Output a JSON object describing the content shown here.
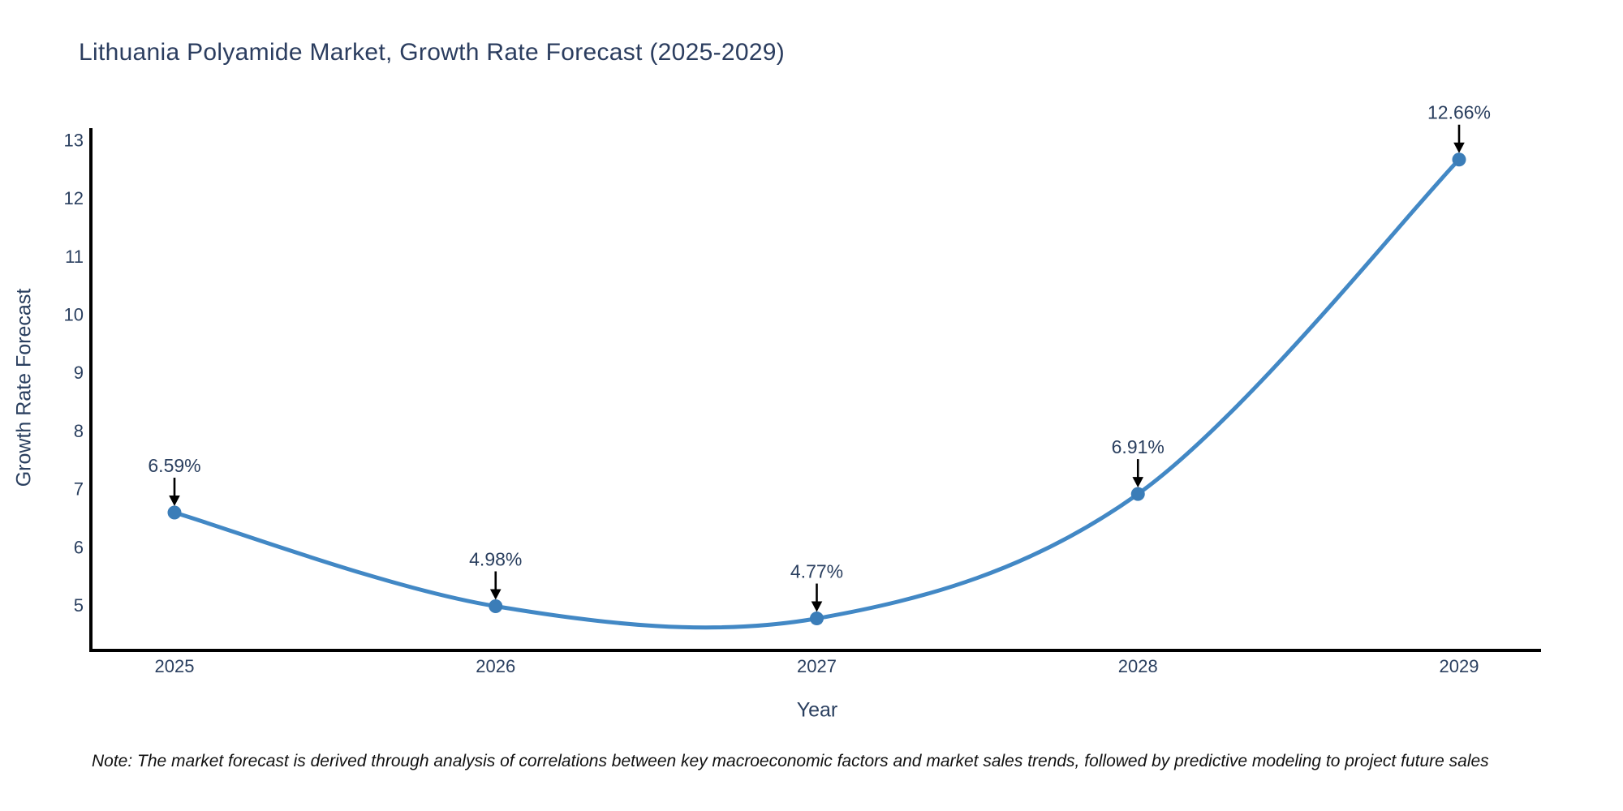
{
  "title": "Lithuania Polyamide Market, Growth Rate Forecast (2025-2029)",
  "note": "Note: The market forecast is derived through analysis of correlations between key macroeconomic factors and market sales trends, followed by predictive modeling to project future sales",
  "chart_data": {
    "type": "line",
    "line_shape": "spline",
    "title": "Lithuania Polyamide Market, Growth Rate Forecast (2025-2029)",
    "xlabel": "Year",
    "ylabel": "Growth Rate Forecast",
    "x": [
      2025,
      2026,
      2027,
      2028,
      2029
    ],
    "y": [
      6.59,
      4.98,
      4.77,
      6.91,
      12.66
    ],
    "point_labels": [
      "6.59%",
      "4.98%",
      "4.77%",
      "6.91%",
      "12.66%"
    ],
    "xticks": [
      "2025",
      "2026",
      "2027",
      "2028",
      "2029"
    ],
    "yticks": [
      5,
      6,
      7,
      8,
      9,
      10,
      11,
      12,
      13
    ],
    "ylim": [
      4.22,
      13.2
    ],
    "grid": false,
    "legend": "none",
    "markers": true,
    "annotations_have_arrows": true,
    "colors": {
      "line": "#4288c5",
      "marker": "#3b7db8",
      "axis": "#000000",
      "tick_text": "#2a3f5f",
      "annotation_text": "#2a3f5f",
      "annotation_arrow": "#000000",
      "background": "#ffffff"
    }
  }
}
